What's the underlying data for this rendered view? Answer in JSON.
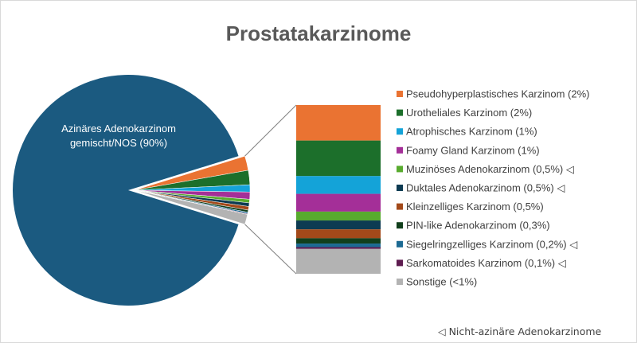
{
  "chart_data": {
    "type": "pie",
    "title": "Prostatakarzinome",
    "main_slice": {
      "label": "Azinäres Adenokarzinom gemischt/NOS (90%)",
      "label_lines": [
        "Azinäres Adenokarzinom",
        "gemischt/NOS (90%)"
      ],
      "value": 90,
      "color": "#1b5a80"
    },
    "breakdown": [
      {
        "name": "Pseudohyperplastisches Karzinom (2%)",
        "value": 2,
        "color": "#ea7332"
      },
      {
        "name": "Urotheliales Karzinom (2%)",
        "value": 2,
        "color": "#1c6f2b"
      },
      {
        "name": "Atrophisches Karzinom (1%)",
        "value": 1,
        "color": "#14a3d8"
      },
      {
        "name": "Foamy Gland Karzinom (1%)",
        "value": 1,
        "color": "#a42f98"
      },
      {
        "name": "Muzinöses Adenokarzinom (0,5%) ◁",
        "value": 0.5,
        "color": "#58ab2e"
      },
      {
        "name": "Duktales Adenokarzinom (0,5%) ◁",
        "value": 0.5,
        "color": "#0d3b52"
      },
      {
        "name": "Kleinzelliges Karzinom (0,5%)",
        "value": 0.5,
        "color": "#a3491a"
      },
      {
        "name": "PIN-like Adenokarzinom (0,3%)",
        "value": 0.3,
        "color": "#113f1c"
      },
      {
        "name": "Siegelringzelliges Karzinom (0,2%) ◁",
        "value": 0.2,
        "color": "#1c6a93"
      },
      {
        "name": "Sarkomatoides Karzinom (0,1%) ◁",
        "value": 0.1,
        "color": "#5e1c50"
      },
      {
        "name": "Sonstige (<1%)",
        "value": 1.4,
        "color": "#b3b3b3"
      }
    ],
    "legend_position": "right",
    "footnote": "◁   Nicht-azinäre Adenokarzinome"
  }
}
